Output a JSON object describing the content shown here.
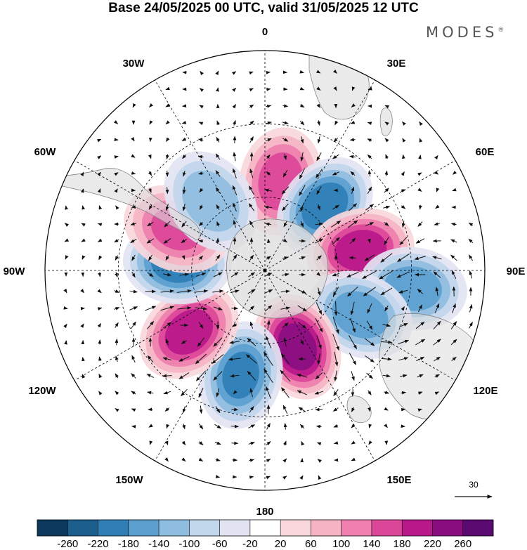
{
  "title": "Base 24/05/2025 00 UTC, valid 31/05/2025 12 UTC",
  "brand": {
    "name": "MODES",
    "mark": "®"
  },
  "longitude_labels": {
    "lon_0": "0",
    "lon_30e": "30E",
    "lon_60e": "60E",
    "lon_90e": "90E",
    "lon_120e": "120E",
    "lon_150e": "150E",
    "lon_180": "180",
    "lon_150w": "150W",
    "lon_120w": "120W",
    "lon_90w": "90W",
    "lon_60w": "60W",
    "lon_30w": "30W"
  },
  "reference_vector": {
    "label": "30",
    "icon": "arrow-right-icon"
  },
  "colorbar": {
    "ticks": [
      "-260",
      "-220",
      "-180",
      "-140",
      "-100",
      "-60",
      "-20",
      "20",
      "60",
      "100",
      "140",
      "180",
      "220",
      "260"
    ],
    "colors": [
      "#0d3a5c",
      "#1c5f8f",
      "#2f7fb6",
      "#5b9fcf",
      "#8fbde0",
      "#c2d6ec",
      "#e3e4f2",
      "#ffffff",
      "#f8d8dc",
      "#f5b4c4",
      "#ee7fae",
      "#dc4699",
      "#b8188a",
      "#8a0e80",
      "#5a0a70"
    ]
  },
  "anomaly_centers": [
    {
      "lon": 10,
      "colat": 37,
      "value": 180
    },
    {
      "lon": 43,
      "colat": 36,
      "value": -220
    },
    {
      "lon": 78,
      "colat": 40,
      "value": 220
    },
    {
      "lon": 97,
      "colat": 61,
      "value": -180
    },
    {
      "lon": 115,
      "colat": 43,
      "value": -180
    },
    {
      "lon": 157,
      "colat": 34,
      "value": 260
    },
    {
      "lon": 193,
      "colat": 44,
      "value": -200
    },
    {
      "lon": 231,
      "colat": 40,
      "value": 220
    },
    {
      "lon": 275,
      "colat": 36,
      "value": -220
    },
    {
      "lon": 295,
      "colat": 40,
      "value": 160
    },
    {
      "lon": 322,
      "colat": 36,
      "value": -140
    }
  ]
}
